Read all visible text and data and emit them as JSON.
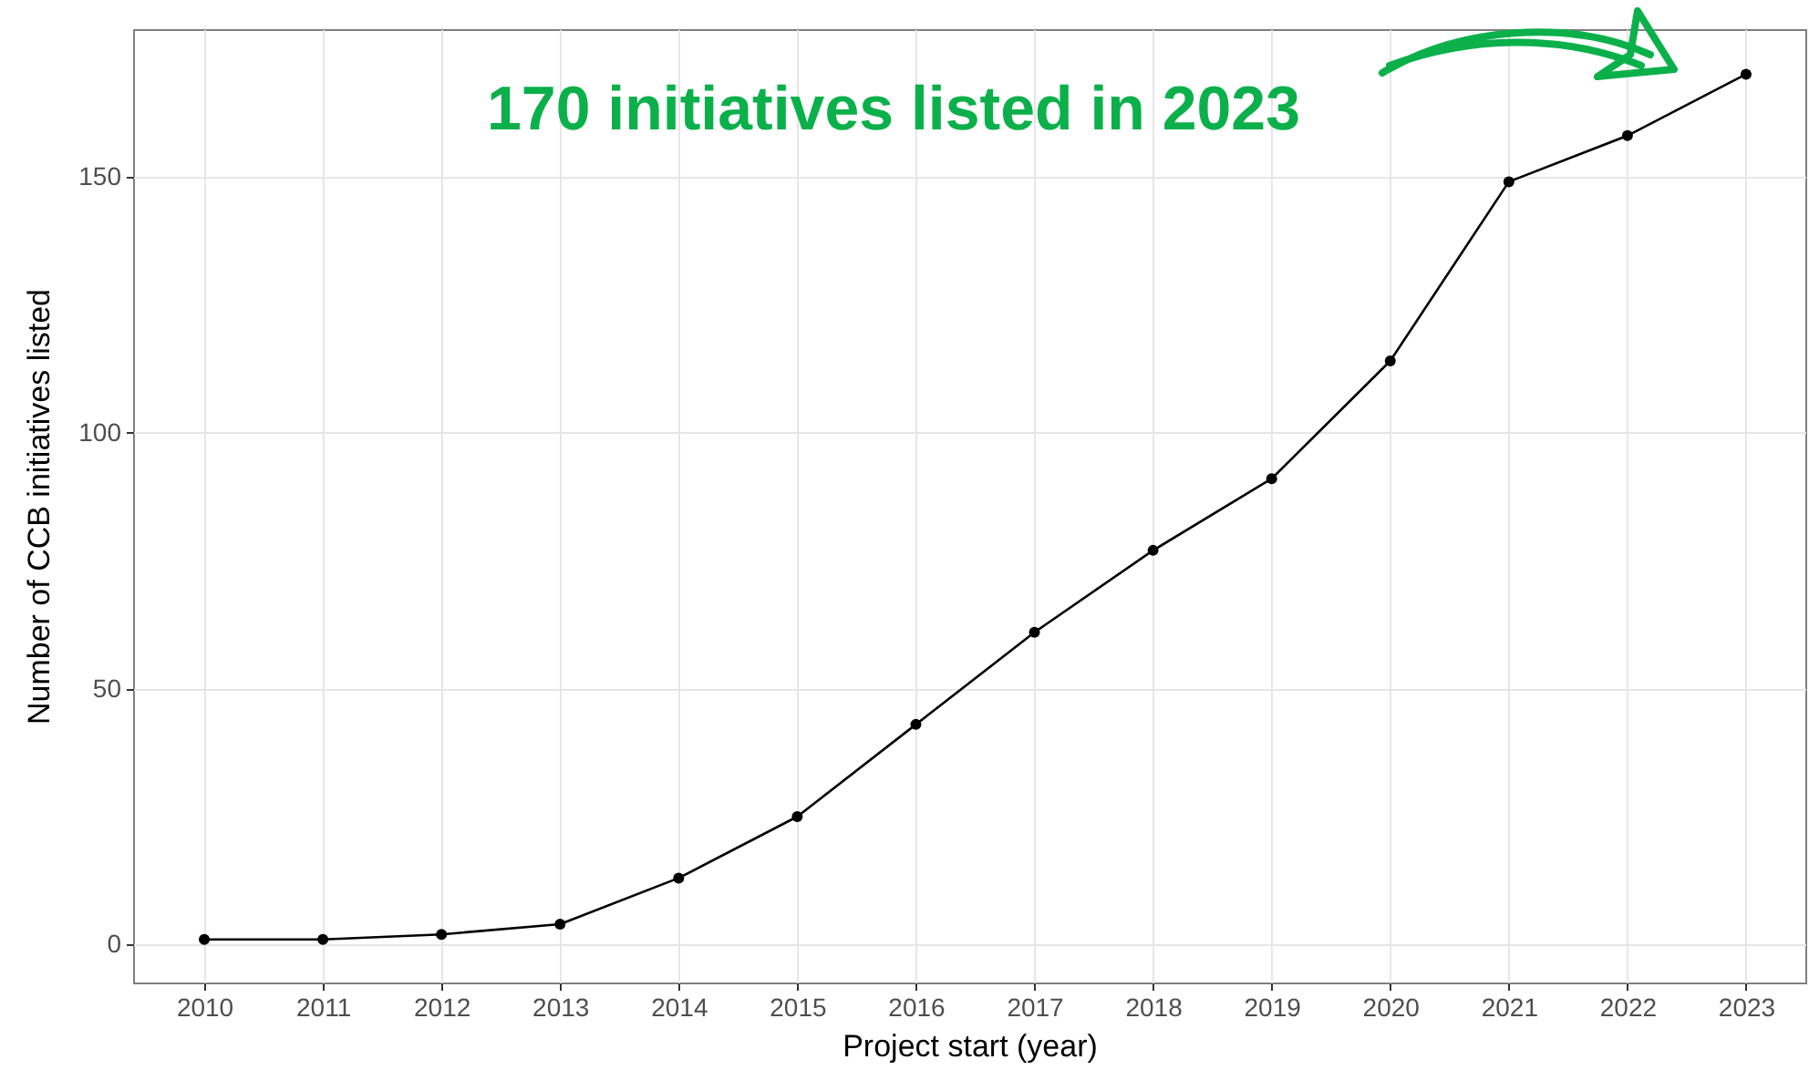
{
  "chart_data": {
    "type": "line",
    "xlabel": "Project start (year)",
    "ylabel": "Number of CCB initiatives listed",
    "x": [
      2010,
      2011,
      2012,
      2013,
      2014,
      2015,
      2016,
      2017,
      2018,
      2019,
      2020,
      2021,
      2022,
      2023
    ],
    "series": [
      {
        "color": "#000000",
        "values": [
          1,
          1,
          2,
          4,
          13,
          25,
          43,
          61,
          77,
          91,
          114,
          149,
          158,
          170
        ]
      }
    ],
    "xlim": [
      2009.4,
      2023.5
    ],
    "xticks": [
      2010,
      2011,
      2012,
      2013,
      2014,
      2015,
      2016,
      2017,
      2018,
      2019,
      2020,
      2021,
      2022,
      2023
    ],
    "ylim": [
      -7.4,
      178.8
    ],
    "yticks": [
      0,
      50,
      100,
      150
    ],
    "grid": true,
    "marker": "circle",
    "line_style": "solid",
    "annotations": [
      "170 initiatives listed in 2023"
    ]
  }
}
